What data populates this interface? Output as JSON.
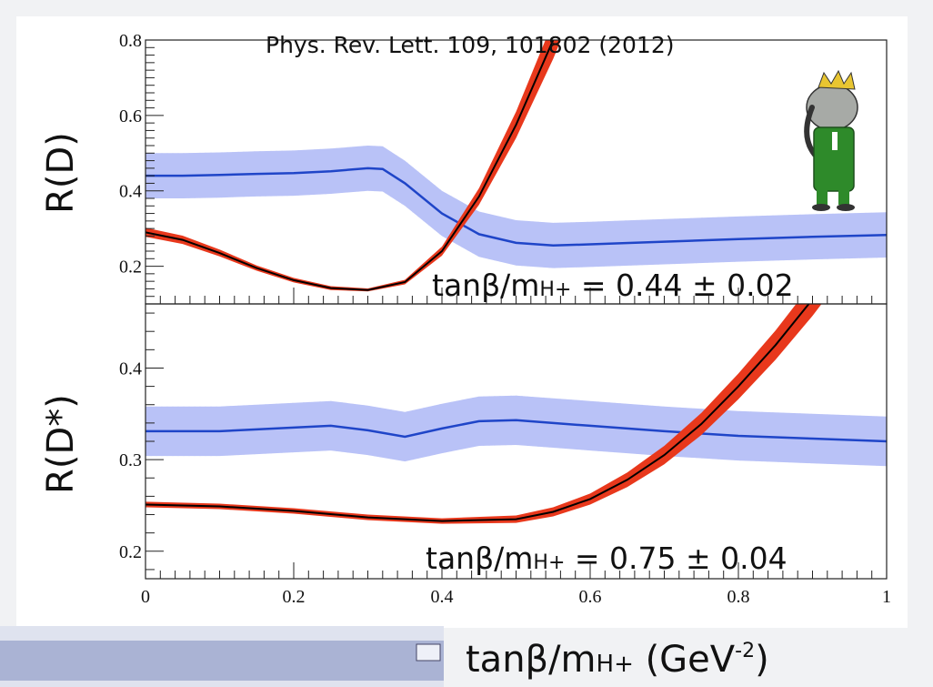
{
  "reference": "Phys. Rev. Lett. 109, 101802 (2012)",
  "xlabel": {
    "main": "tanβ/m",
    "sub": "H+",
    "unit_open": "  (GeV",
    "sup": "-2",
    "unit_close": ")"
  },
  "colors": {
    "blue_line": "#1f45c8",
    "blue_band": "#7f8ff0",
    "red_band": "#e8381c",
    "black_line": "#000000"
  },
  "chart_data": [
    {
      "type": "line",
      "ylabel": "R(D)",
      "xlim": [
        0,
        1
      ],
      "ylim": [
        0.1,
        0.8
      ],
      "yticks": [
        0.2,
        0.4,
        0.6,
        0.8
      ],
      "annotation": {
        "main": "tanβ/m",
        "sub": "H+",
        "value": " = 0.44 ± 0.02"
      },
      "series": [
        {
          "role": "blue",
          "x": [
            0,
            0.05,
            0.1,
            0.15,
            0.2,
            0.25,
            0.3,
            0.32,
            0.35,
            0.4,
            0.45,
            0.5,
            0.55,
            0.6,
            0.7,
            0.8,
            0.9,
            1.0
          ],
          "y": [
            0.44,
            0.44,
            0.442,
            0.445,
            0.447,
            0.452,
            0.46,
            0.458,
            0.42,
            0.34,
            0.285,
            0.262,
            0.255,
            0.258,
            0.265,
            0.272,
            0.278,
            0.283
          ],
          "err": 0.06
        },
        {
          "role": "red",
          "x": [
            0,
            0.05,
            0.1,
            0.15,
            0.2,
            0.25,
            0.3,
            0.35,
            0.4,
            0.45,
            0.5,
            0.55,
            0.6
          ],
          "y": [
            0.29,
            0.27,
            0.235,
            0.195,
            0.163,
            0.142,
            0.137,
            0.158,
            0.24,
            0.385,
            0.575,
            0.8,
            1.05
          ],
          "err_lo": [
            0.012,
            0.011,
            0.009,
            0.007,
            0.006,
            0.005,
            0.004,
            0.006,
            0.012,
            0.022,
            0.035,
            0.05,
            0.06
          ],
          "err_hi": [
            0.012,
            0.011,
            0.009,
            0.007,
            0.006,
            0.005,
            0.004,
            0.006,
            0.012,
            0.022,
            0.035,
            0.05,
            0.06
          ]
        }
      ]
    },
    {
      "type": "line",
      "ylabel": "R(D*)",
      "xlim": [
        0,
        1
      ],
      "ylim": [
        0.17,
        0.47
      ],
      "yticks": [
        0.2,
        0.3,
        0.4
      ],
      "xticks": [
        0,
        0.2,
        0.4,
        0.6,
        0.8,
        1
      ],
      "annotation": {
        "main": "tanβ/m",
        "sub": "H+",
        "value": " = 0.75 ± 0.04"
      },
      "series": [
        {
          "role": "blue",
          "x": [
            0,
            0.05,
            0.1,
            0.15,
            0.2,
            0.25,
            0.3,
            0.35,
            0.4,
            0.45,
            0.5,
            0.55,
            0.6,
            0.7,
            0.8,
            0.9,
            1.0
          ],
          "y": [
            0.331,
            0.331,
            0.331,
            0.333,
            0.335,
            0.337,
            0.332,
            0.325,
            0.334,
            0.342,
            0.343,
            0.34,
            0.337,
            0.331,
            0.326,
            0.323,
            0.32
          ],
          "err": 0.027
        },
        {
          "role": "red",
          "x": [
            0,
            0.1,
            0.2,
            0.3,
            0.4,
            0.5,
            0.55,
            0.6,
            0.65,
            0.7,
            0.75,
            0.8,
            0.85,
            0.9,
            0.95
          ],
          "y": [
            0.251,
            0.249,
            0.244,
            0.237,
            0.233,
            0.235,
            0.243,
            0.257,
            0.278,
            0.305,
            0.339,
            0.38,
            0.425,
            0.475,
            0.53
          ],
          "err_lo": [
            0.003,
            0.003,
            0.003,
            0.003,
            0.003,
            0.004,
            0.005,
            0.006,
            0.008,
            0.01,
            0.012,
            0.014,
            0.016,
            0.018,
            0.02
          ],
          "err_hi": [
            0.003,
            0.003,
            0.003,
            0.003,
            0.003,
            0.004,
            0.005,
            0.006,
            0.008,
            0.01,
            0.012,
            0.014,
            0.016,
            0.018,
            0.02
          ]
        }
      ]
    }
  ]
}
